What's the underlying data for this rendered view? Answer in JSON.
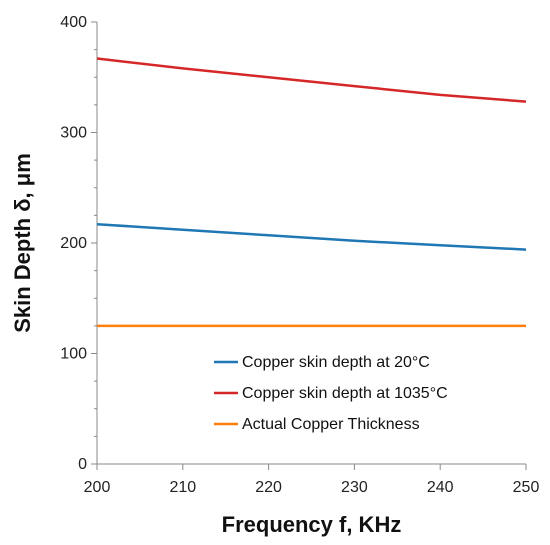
{
  "chart_data": {
    "type": "line",
    "xlabel": "Frequency f, KHz",
    "ylabel": "Skin Depth δ, μm",
    "xlim": [
      200,
      250
    ],
    "ylim": [
      0,
      400
    ],
    "xticks": [
      200,
      210,
      220,
      230,
      240,
      250
    ],
    "yticks": [
      0,
      100,
      200,
      300,
      400
    ],
    "x_tick_labels": [
      "200",
      "210",
      "220",
      "230",
      "240",
      "250"
    ],
    "y_tick_labels": [
      "0",
      "100",
      "200",
      "300",
      "400"
    ],
    "grid": false,
    "legend_position": "center-bottom",
    "x": [
      200,
      210,
      220,
      230,
      240,
      250
    ],
    "series": [
      {
        "name": "Copper skin depth at 20°C",
        "color": "#1f77b4",
        "values": [
          217,
          212,
          207,
          202,
          198,
          194
        ]
      },
      {
        "name": "Copper skin depth at 1035°C",
        "color": "#d62728",
        "values": [
          367,
          358,
          350,
          342,
          334,
          328
        ]
      },
      {
        "name": "Actual Copper Thickness",
        "color": "#ff7f0e",
        "values": [
          125,
          125,
          125,
          125,
          125,
          125
        ]
      }
    ]
  }
}
